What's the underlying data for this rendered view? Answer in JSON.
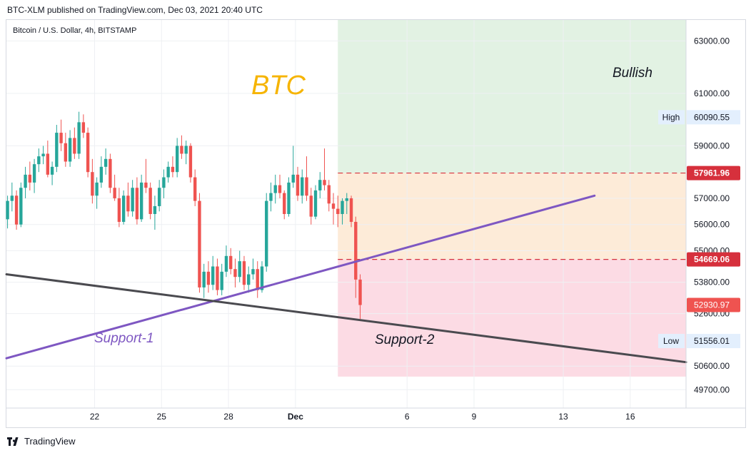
{
  "header": {
    "published": "BTC-XLM published on TradingView.com, Dec 03, 2021 20:40 UTC"
  },
  "footer": {
    "brand": "TradingView",
    "logo_icon": "tradingview-logo-icon"
  },
  "chart_data": {
    "type": "candlestick",
    "symbol": "Bitcoin / U.S. Dollar, 4h, BITSTAMP",
    "title": "BTC",
    "ylim": [
      49000,
      63800
    ],
    "y_ticks": [
      63000,
      61000,
      59000,
      57000,
      56000,
      55000,
      53800,
      52600,
      50600,
      49700
    ],
    "y_tick_labels": [
      "63000.00",
      "61000.00",
      "59000.00",
      "57000.00",
      "56000.00",
      "55000.00",
      "53800.00",
      "52600.00",
      "50600.00",
      "49700.00"
    ],
    "x_ticks": [
      {
        "day": 22,
        "label": "22"
      },
      {
        "day": 25,
        "label": "25"
      },
      {
        "day": 28,
        "label": "28"
      },
      {
        "day": 31,
        "label": "Dec",
        "bold": true
      },
      {
        "day": 36,
        "label": "6"
      },
      {
        "day": 39,
        "label": "9"
      },
      {
        "day": 43,
        "label": "13"
      },
      {
        "day": 46,
        "label": "16"
      }
    ],
    "xlim_days": [
      18.05,
      48.5
    ],
    "zones": [
      {
        "name": "Bullish",
        "from": 57961.96,
        "to": 63800,
        "color": "#e2f2e3",
        "start_day": 32.9
      },
      {
        "name": "",
        "from": 54669.06,
        "to": 57961.96,
        "color": "#fdebd8",
        "start_day": 32.9
      },
      {
        "name": "",
        "from": 50200,
        "to": 54669.06,
        "color": "#fcdbe4",
        "start_day": 32.9
      }
    ],
    "levels": [
      {
        "value": 57961.96,
        "label": "57961.96",
        "color": "#d6303c"
      },
      {
        "value": 54669.06,
        "label": "54669.06",
        "color": "#d6303c"
      }
    ],
    "price_markers": [
      {
        "value": 60090.55,
        "label": "60090.55",
        "tag": "High",
        "style": "light"
      },
      {
        "value": 52930.97,
        "label": "52930.97",
        "tag": "",
        "style": "red"
      },
      {
        "value": 51556.01,
        "label": "51556.01",
        "tag": "Low",
        "style": "light"
      }
    ],
    "trendlines": [
      {
        "name": "Support-1",
        "color": "#7e57c2",
        "from": [
          18.05,
          50900
        ],
        "to": [
          44.4,
          57100
        ]
      },
      {
        "name": "Support-2",
        "color": "#4a4a4f",
        "from": [
          18.05,
          54100
        ],
        "to": [
          48.5,
          50750
        ]
      }
    ],
    "annotations": {
      "title_text": "BTC",
      "bullish": "Bullish",
      "support1": "Support-1",
      "support2": "Support-2"
    },
    "candles": [
      [
        18.1,
        56200,
        57100,
        55850,
        56900
      ],
      [
        18.3,
        56900,
        57600,
        56500,
        57100
      ],
      [
        18.5,
        57100,
        57300,
        55800,
        56000
      ],
      [
        18.7,
        56000,
        57600,
        55900,
        57400
      ],
      [
        18.9,
        57400,
        58200,
        57000,
        57900
      ],
      [
        19.1,
        57900,
        58400,
        57300,
        57600
      ],
      [
        19.3,
        57600,
        58500,
        57200,
        58300
      ],
      [
        19.5,
        58300,
        58900,
        58000,
        58600
      ],
      [
        19.7,
        58600,
        59000,
        58300,
        58700
      ],
      [
        19.9,
        58700,
        59200,
        57800,
        57900
      ],
      [
        20.1,
        57900,
        58400,
        57500,
        58200
      ],
      [
        20.3,
        58200,
        59800,
        58000,
        59500
      ],
      [
        20.5,
        59500,
        60000,
        58800,
        59100
      ],
      [
        20.7,
        59100,
        59500,
        58200,
        58400
      ],
      [
        20.9,
        58400,
        59600,
        58200,
        59300
      ],
      [
        21.1,
        59300,
        59700,
        58500,
        58700
      ],
      [
        21.3,
        58700,
        60300,
        58500,
        59900
      ],
      [
        21.5,
        59900,
        60200,
        59300,
        59500
      ],
      [
        21.7,
        59500,
        59700,
        57800,
        58000
      ],
      [
        21.9,
        58000,
        58500,
        56800,
        57100
      ],
      [
        22.1,
        57100,
        57800,
        56600,
        57600
      ],
      [
        22.3,
        57600,
        58600,
        57400,
        58200
      ],
      [
        22.5,
        58200,
        58900,
        57900,
        58500
      ],
      [
        22.7,
        58500,
        58700,
        57200,
        57400
      ],
      [
        22.9,
        57400,
        57900,
        56900,
        57000
      ],
      [
        23.1,
        57000,
        57400,
        55900,
        56100
      ],
      [
        23.3,
        56100,
        57300,
        56000,
        57100
      ],
      [
        23.5,
        57100,
        57600,
        56300,
        56500
      ],
      [
        23.7,
        56500,
        57700,
        56300,
        57400
      ],
      [
        23.9,
        57400,
        57800,
        56000,
        56200
      ],
      [
        24.1,
        56200,
        57900,
        56100,
        57600
      ],
      [
        24.3,
        57600,
        58500,
        57200,
        57400
      ],
      [
        24.5,
        57400,
        57600,
        56200,
        56400
      ],
      [
        24.7,
        56400,
        57100,
        55800,
        56700
      ],
      [
        24.9,
        56700,
        57700,
        56500,
        57400
      ],
      [
        25.1,
        57400,
        58100,
        57000,
        57800
      ],
      [
        25.3,
        57800,
        58400,
        57600,
        58200
      ],
      [
        25.5,
        58200,
        58600,
        57800,
        58000
      ],
      [
        25.7,
        58000,
        59300,
        57800,
        59000
      ],
      [
        25.9,
        59000,
        59400,
        58500,
        58700
      ],
      [
        26.1,
        58700,
        59200,
        58300,
        59000
      ],
      [
        26.3,
        59000,
        59100,
        57600,
        57800
      ],
      [
        26.5,
        57800,
        58100,
        56700,
        56900
      ],
      [
        26.7,
        56900,
        57200,
        53400,
        53600
      ],
      [
        26.9,
        53600,
        54500,
        53200,
        54200
      ],
      [
        27.1,
        54200,
        54600,
        53400,
        53700
      ],
      [
        27.3,
        53700,
        54800,
        53500,
        54400
      ],
      [
        27.5,
        54400,
        54700,
        53300,
        53500
      ],
      [
        27.7,
        53500,
        54500,
        53300,
        54200
      ],
      [
        27.9,
        54200,
        55200,
        54000,
        54800
      ],
      [
        28.1,
        54800,
        55100,
        54100,
        54300
      ],
      [
        28.3,
        54300,
        54700,
        53600,
        54000
      ],
      [
        28.5,
        54000,
        55000,
        53800,
        54600
      ],
      [
        28.7,
        54600,
        54800,
        53500,
        53700
      ],
      [
        28.9,
        53700,
        54400,
        53400,
        54100
      ],
      [
        29.1,
        54100,
        54700,
        53900,
        54300
      ],
      [
        29.3,
        54300,
        54600,
        53200,
        53500
      ],
      [
        29.5,
        53500,
        54600,
        53400,
        54400
      ],
      [
        29.7,
        54400,
        57200,
        54200,
        56900
      ],
      [
        29.9,
        56900,
        57600,
        56500,
        57200
      ],
      [
        30.1,
        57200,
        57900,
        56800,
        57500
      ],
      [
        30.3,
        57500,
        57900,
        57000,
        57200
      ],
      [
        30.5,
        57200,
        57300,
        56200,
        56400
      ],
      [
        30.7,
        56400,
        57800,
        56300,
        57600
      ],
      [
        30.9,
        57600,
        59000,
        57400,
        57900
      ],
      [
        31.1,
        57900,
        58200,
        56900,
        57100
      ],
      [
        31.3,
        57100,
        58100,
        56800,
        57800
      ],
      [
        31.5,
        57800,
        58600,
        56900,
        57100
      ],
      [
        31.7,
        57100,
        57400,
        56000,
        56300
      ],
      [
        31.9,
        56300,
        57500,
        56200,
        57300
      ],
      [
        32.1,
        57300,
        58000,
        57000,
        57700
      ],
      [
        32.3,
        57700,
        58900,
        57300,
        57500
      ],
      [
        32.5,
        57500,
        57700,
        56500,
        56800
      ],
      [
        32.7,
        56800,
        57200,
        56000,
        56600
      ],
      [
        32.9,
        56600,
        57100,
        55900,
        56400
      ],
      [
        33.1,
        56400,
        57000,
        56000,
        56900
      ],
      [
        33.3,
        56900,
        57200,
        56400,
        57000
      ],
      [
        33.5,
        57000,
        57100,
        55900,
        56100
      ],
      [
        33.7,
        56100,
        56300,
        53200,
        53900
      ],
      [
        33.9,
        53900,
        54100,
        52400,
        52930
      ]
    ]
  }
}
